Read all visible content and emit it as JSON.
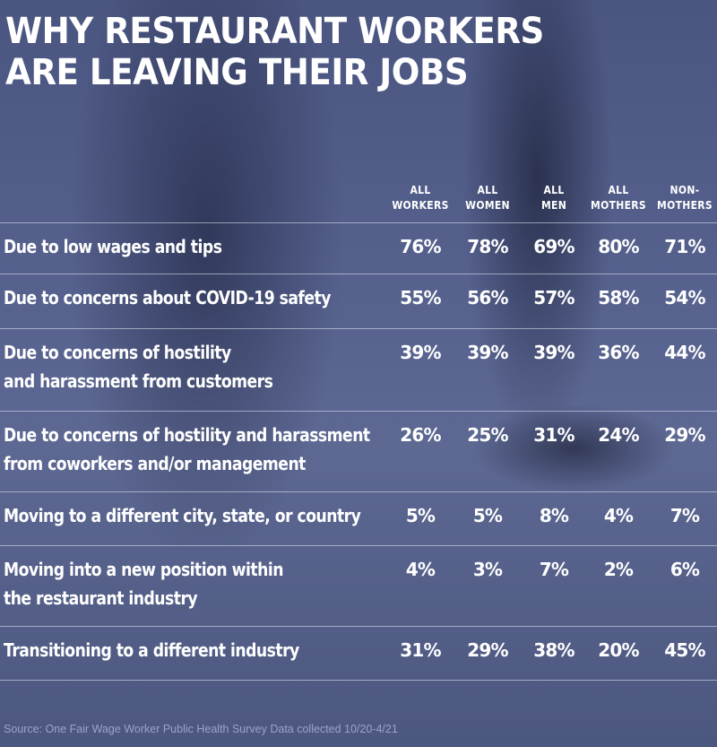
{
  "chart_data": {
    "type": "table",
    "title": [
      "WHY RESTAURANT WORKERS",
      "ARE LEAVING THEIR JOBS"
    ],
    "columns": [
      [
        "ALL",
        "WORKERS"
      ],
      [
        "ALL",
        "WOMEN"
      ],
      [
        "ALL",
        "MEN"
      ],
      [
        "ALL",
        "MOTHERS"
      ],
      [
        "NON-",
        "MOTHERS"
      ]
    ],
    "rows": [
      {
        "label": [
          "Due to low wages and tips"
        ],
        "values": [
          "76%",
          "78%",
          "69%",
          "80%",
          "71%"
        ]
      },
      {
        "label": [
          "Due to concerns about COVID-19 safety"
        ],
        "values": [
          "55%",
          "56%",
          "57%",
          "58%",
          "54%"
        ]
      },
      {
        "label": [
          "Due to concerns of hostility",
          "and harassment from customers"
        ],
        "values": [
          "39%",
          "39%",
          "39%",
          "36%",
          "44%"
        ]
      },
      {
        "label": [
          "Due to concerns of hostility and harassment",
          "from coworkers and/or management"
        ],
        "values": [
          "26%",
          "25%",
          "31%",
          "24%",
          "29%"
        ]
      },
      {
        "label": [
          "Moving to a different city, state, or country"
        ],
        "values": [
          "5%",
          "5%",
          "8%",
          "4%",
          "7%"
        ]
      },
      {
        "label": [
          "Moving into a new position within",
          "the restaurant industry"
        ],
        "values": [
          "4%",
          "3%",
          "7%",
          "2%",
          "6%"
        ]
      },
      {
        "label": [
          "Transitioning to a different industry"
        ],
        "values": [
          "31%",
          "29%",
          "38%",
          "20%",
          "45%"
        ]
      }
    ],
    "source": "Source: One Fair Wage Worker Public Health Survey Data collected 10/20-4/21"
  },
  "colors": {
    "background": "#55608d",
    "text": "#ffffff",
    "source_text": "#9aa4c8",
    "rule": "#e6ebfa"
  }
}
